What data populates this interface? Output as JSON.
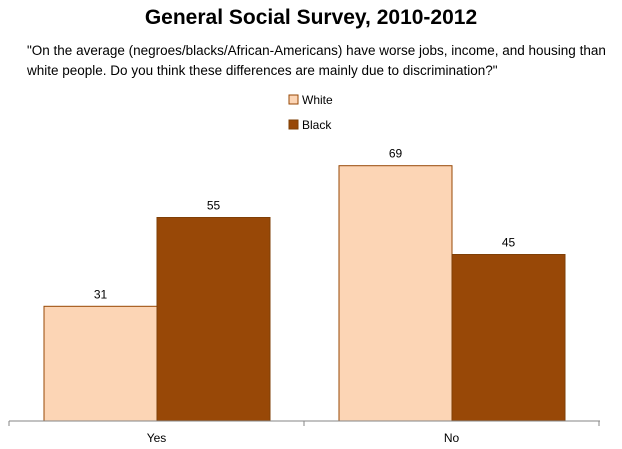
{
  "chart_data": {
    "type": "bar",
    "title": "General Social Survey, 2010-2012",
    "subtitle": "\"On the average (negroes/blacks/African-Americans) have worse jobs, income, and housing than white people. Do you think these differences are mainly due to discrimination?\"",
    "categories": [
      "Yes",
      "No"
    ],
    "series": [
      {
        "name": "White",
        "values": [
          31,
          69
        ],
        "color": "#FCD5B5",
        "stroke": "#974806"
      },
      {
        "name": "Black",
        "values": [
          55,
          45
        ],
        "color": "#984807",
        "stroke": "#7F3F06"
      }
    ],
    "ylim": [
      0,
      80
    ],
    "xlabel": "",
    "ylabel": "",
    "grid": false,
    "legend": "top-center"
  }
}
